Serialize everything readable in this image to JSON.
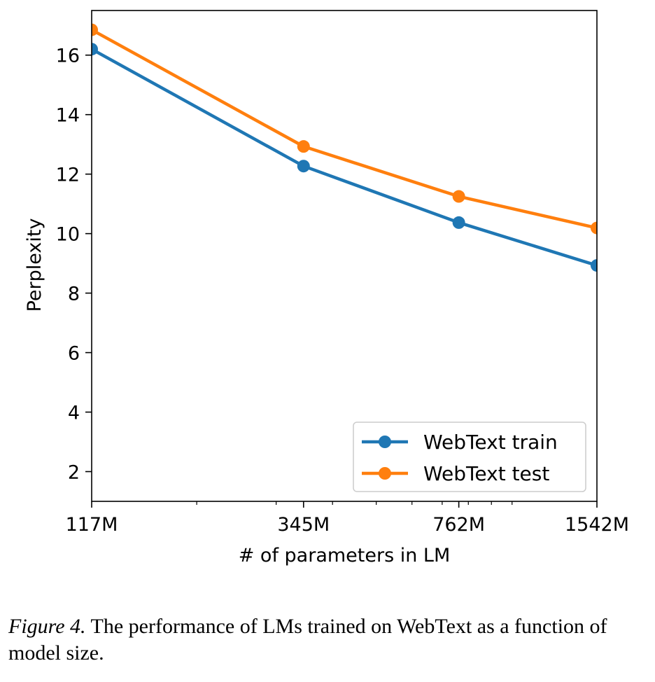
{
  "chart_data": {
    "type": "line",
    "xlabel": "# of parameters in LM",
    "ylabel": "Perplexity",
    "x_scale": "log",
    "x_values": [
      117,
      345,
      762,
      1542
    ],
    "x_tick_labels": [
      "117M",
      "345M",
      "762M",
      "1542M"
    ],
    "xlim": [
      117,
      1542
    ],
    "ylim": [
      1,
      17.5
    ],
    "y_ticks": [
      2,
      4,
      6,
      8,
      10,
      12,
      14,
      16
    ],
    "grid": false,
    "legend_position": "bottom-right",
    "series": [
      {
        "name": "WebText train",
        "color": "#1f77b4",
        "values": [
          16.2,
          12.27,
          10.37,
          8.93
        ]
      },
      {
        "name": "WebText test",
        "color": "#ff7f0e",
        "values": [
          16.85,
          12.93,
          11.25,
          10.19
        ]
      }
    ]
  },
  "caption": {
    "label": "Figure 4.",
    "text": "The performance of LMs trained on WebText as a function of model size."
  }
}
